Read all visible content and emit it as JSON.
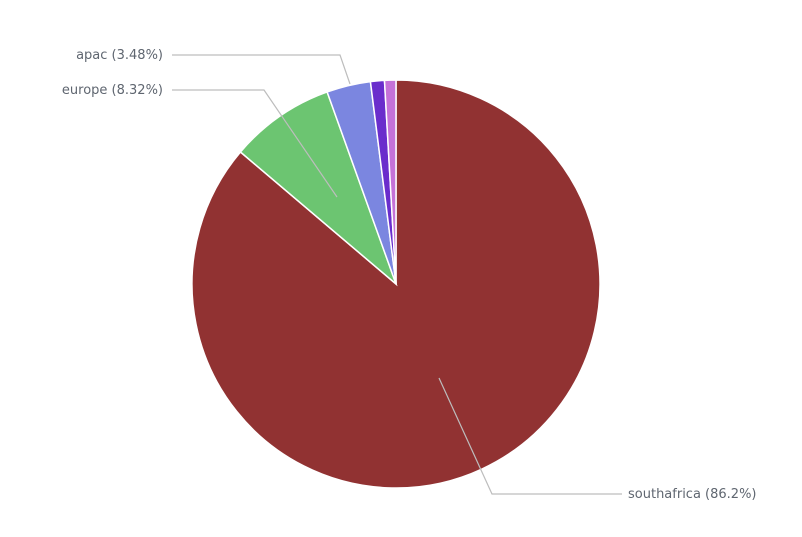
{
  "chart_data": {
    "type": "pie",
    "title": "",
    "start_angle_deg": 0,
    "direction": "clockwise",
    "slices": [
      {
        "name": "southafrica",
        "value": 86.2,
        "color": "#913232",
        "label": "southafrica (86.2%)"
      },
      {
        "name": "europe",
        "value": 8.32,
        "color": "#6cc571",
        "label": "europe (8.32%)"
      },
      {
        "name": "apac",
        "value": 3.48,
        "color": "#7b86e0",
        "label": "apac (3.48%)"
      },
      {
        "name": "",
        "value": 1.1,
        "color": "#6a2dcc",
        "label": ""
      },
      {
        "name": "",
        "value": 0.9,
        "color": "#c572d8",
        "label": ""
      }
    ]
  }
}
